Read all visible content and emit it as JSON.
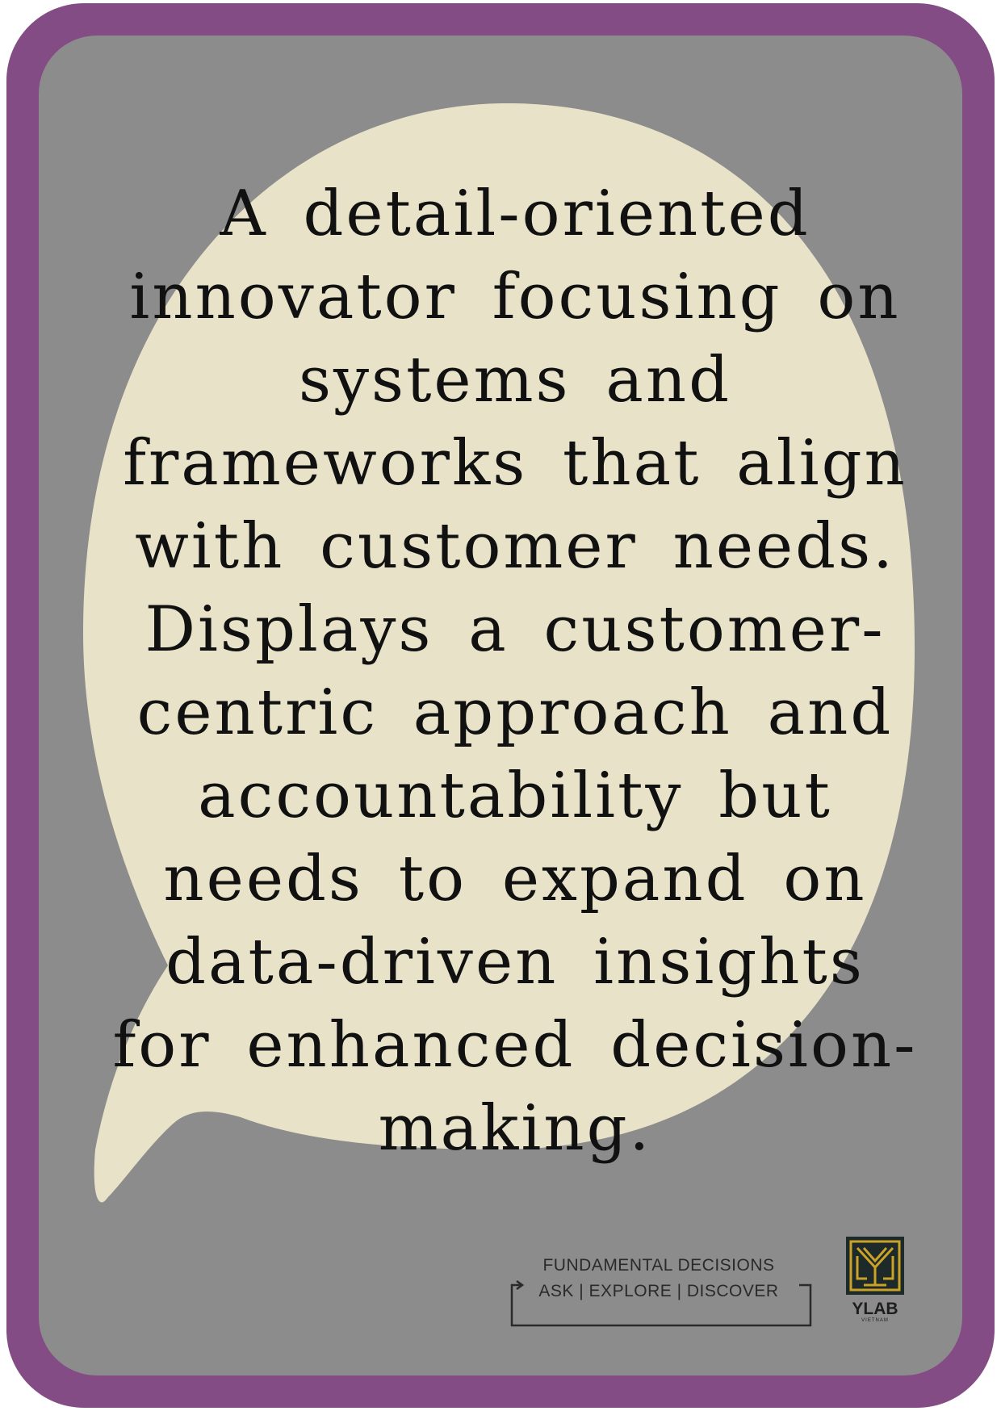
{
  "card": {
    "border_color": "#844c84",
    "background_color": "#8c8c8c",
    "bubble_color": "#e8e3c8",
    "quote": "A detail-oriented innovator focusing on systems and frameworks that align with customer needs. Displays a customer-centric approach and accountability but needs to expand on data-driven insights for enhanced decision-making."
  },
  "footer": {
    "line1": "FUNDAMENTAL DECISIONS",
    "line2": "ASK | EXPLORE | DISCOVER"
  },
  "logo": {
    "name": "YLAB",
    "subtitle": "VIETNAM",
    "icon": "ylab-maze-icon",
    "gold": "#c9a227",
    "dark": "#1e2a2a"
  }
}
